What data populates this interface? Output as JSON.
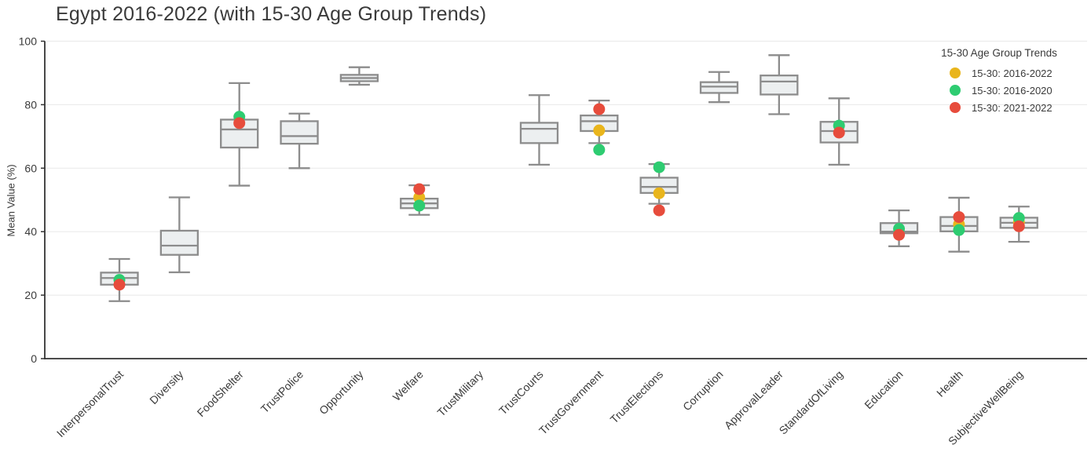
{
  "chart_data": {
    "type": "boxplot",
    "title": "Egypt 2016-2022 (with 15-30 Age Group Trends)",
    "xlabel": "",
    "ylabel": "Mean Value (%)",
    "ylim": [
      0,
      100
    ],
    "yticks": [
      0,
      20,
      40,
      60,
      80,
      100
    ],
    "grid": true,
    "categories": [
      "InterpersonalTrust",
      "Diversity",
      "FoodShelter",
      "TrustPolice",
      "Opportunity",
      "Welfare",
      "TrustMilitary",
      "TrustCourts",
      "TrustGovernment",
      "TrustElections",
      "Corruption",
      "ApprovalLeader",
      "StandardOfLiving",
      "Education",
      "Health",
      "SubjectiveWellBeing"
    ],
    "boxes": [
      {
        "whislo": 18.1,
        "q1": 23.3,
        "med": 25.4,
        "q3": 27.1,
        "whishi": 31.4
      },
      {
        "whislo": 27.2,
        "q1": 32.7,
        "med": 35.6,
        "q3": 40.3,
        "whishi": 50.8
      },
      {
        "whislo": 54.5,
        "q1": 66.5,
        "med": 72.2,
        "q3": 75.3,
        "whishi": 86.8
      },
      {
        "whislo": 60.0,
        "q1": 67.7,
        "med": 70.1,
        "q3": 74.8,
        "whishi": 77.2
      },
      {
        "whislo": 86.3,
        "q1": 87.4,
        "med": 88.4,
        "q3": 89.4,
        "whishi": 91.8
      },
      {
        "whislo": 45.3,
        "q1": 47.4,
        "med": 48.9,
        "q3": 50.4,
        "whishi": 54.6
      },
      null,
      {
        "whislo": 61.1,
        "q1": 67.9,
        "med": 72.4,
        "q3": 74.3,
        "whishi": 83.0
      },
      {
        "whislo": 67.9,
        "q1": 71.7,
        "med": 74.8,
        "q3": 76.6,
        "whishi": 81.3
      },
      {
        "whislo": 48.8,
        "q1": 52.2,
        "med": 54.1,
        "q3": 57.0,
        "whishi": 61.3
      },
      {
        "whislo": 80.8,
        "q1": 83.7,
        "med": 85.7,
        "q3": 87.1,
        "whishi": 90.3
      },
      {
        "whislo": 77.0,
        "q1": 83.2,
        "med": 87.3,
        "q3": 89.2,
        "whishi": 95.6
      },
      {
        "whislo": 61.1,
        "q1": 68.1,
        "med": 71.7,
        "q3": 74.6,
        "whishi": 82.0
      },
      {
        "whislo": 35.4,
        "q1": 39.5,
        "med": 40.0,
        "q3": 42.7,
        "whishi": 46.7
      },
      {
        "whislo": 33.7,
        "q1": 40.1,
        "med": 41.8,
        "q3": 44.6,
        "whishi": 50.7
      },
      {
        "whislo": 36.8,
        "q1": 41.2,
        "med": 42.8,
        "q3": 44.4,
        "whishi": 47.9
      }
    ],
    "series": [
      {
        "name": "15-30: 2016-2022",
        "color": "#E9B51C",
        "values": [
          null,
          null,
          null,
          null,
          null,
          50.8,
          null,
          null,
          71.9,
          52.1,
          null,
          null,
          null,
          null,
          42.3,
          43.0
        ]
      },
      {
        "name": "15-30: 2016-2020",
        "color": "#2ECC71",
        "values": [
          24.8,
          null,
          76.2,
          null,
          null,
          48.2,
          null,
          null,
          65.8,
          60.3,
          null,
          null,
          73.4,
          40.9,
          40.5,
          44.3
        ]
      },
      {
        "name": "15-30: 2021-2022",
        "color": "#E74C3C",
        "values": [
          23.3,
          null,
          74.2,
          null,
          null,
          53.4,
          null,
          null,
          78.6,
          46.7,
          null,
          null,
          71.2,
          39.0,
          44.6,
          41.7
        ]
      }
    ],
    "legend": {
      "title": "15-30 Age Group Trends",
      "position": "top-right"
    },
    "style": {
      "box_fill": "#ECEFF0",
      "box_stroke": "#8C8C8C",
      "grid_color": "#ECECEC",
      "axis_color": "#333333",
      "text_color": "#3A3A3A"
    }
  }
}
